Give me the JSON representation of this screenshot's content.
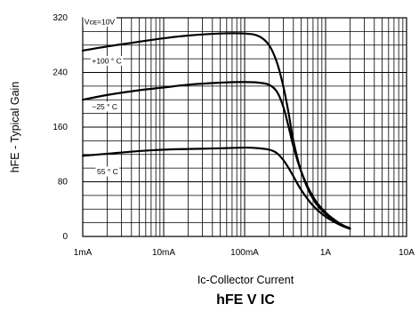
{
  "chart_data": {
    "type": "line",
    "title": "hFE V IC",
    "xlabel": "Ic-Collector Current",
    "ylabel": "hFE - Typical Gain",
    "x_scale": "log",
    "x_unit": "A",
    "xlim": [
      0.001,
      10
    ],
    "ylim": [
      0,
      320
    ],
    "x_ticks": [
      {
        "value": 0.001,
        "label": "1mA"
      },
      {
        "value": 0.01,
        "label": "10mA"
      },
      {
        "value": 0.1,
        "label": "100mA"
      },
      {
        "value": 1,
        "label": "1A"
      },
      {
        "value": 10,
        "label": "10A"
      }
    ],
    "y_ticks": [
      {
        "value": 0,
        "label": "0"
      },
      {
        "value": 80,
        "label": "80"
      },
      {
        "value": 160,
        "label": "160"
      },
      {
        "value": 240,
        "label": "240"
      },
      {
        "value": 320,
        "label": "320"
      }
    ],
    "y_minor_step": 20,
    "grid": true,
    "annotations": [
      {
        "text": "Vᴄᴇ=10V",
        "x": 0.00105,
        "y": 314
      },
      {
        "text": "+100 ° C",
        "x": 0.0013,
        "y": 257
      },
      {
        "text": "−25 ° C",
        "x": 0.0013,
        "y": 190
      },
      {
        "text": "55 ° C",
        "x": 0.0015,
        "y": 95
      }
    ],
    "series": [
      {
        "name": "+100 ° C",
        "x": [
          0.001,
          0.002,
          0.005,
          0.01,
          0.02,
          0.05,
          0.1,
          0.15,
          0.2,
          0.25,
          0.3,
          0.35,
          0.4,
          0.5,
          0.7,
          1.0,
          1.5,
          2.0
        ],
        "y": [
          272,
          278,
          285,
          290,
          294,
          297,
          297,
          293,
          280,
          255,
          220,
          180,
          140,
          95,
          55,
          33,
          18,
          12
        ]
      },
      {
        "name": "−25 ° C",
        "x": [
          0.001,
          0.002,
          0.005,
          0.01,
          0.02,
          0.05,
          0.1,
          0.15,
          0.2,
          0.25,
          0.3,
          0.35,
          0.4,
          0.5,
          0.7,
          1.0,
          1.5,
          2.0
        ],
        "y": [
          200,
          207,
          214,
          218,
          222,
          225,
          226,
          225,
          222,
          212,
          190,
          160,
          132,
          95,
          58,
          35,
          19,
          12
        ]
      },
      {
        "name": "55 ° C",
        "x": [
          0.001,
          0.002,
          0.005,
          0.01,
          0.02,
          0.05,
          0.1,
          0.15,
          0.2,
          0.25,
          0.3,
          0.35,
          0.4,
          0.5,
          0.7,
          1.0,
          1.5,
          2.0
        ],
        "y": [
          118,
          121,
          125,
          127,
          128,
          129,
          130,
          129,
          127,
          122,
          112,
          100,
          88,
          68,
          45,
          29,
          17,
          11
        ]
      }
    ]
  }
}
